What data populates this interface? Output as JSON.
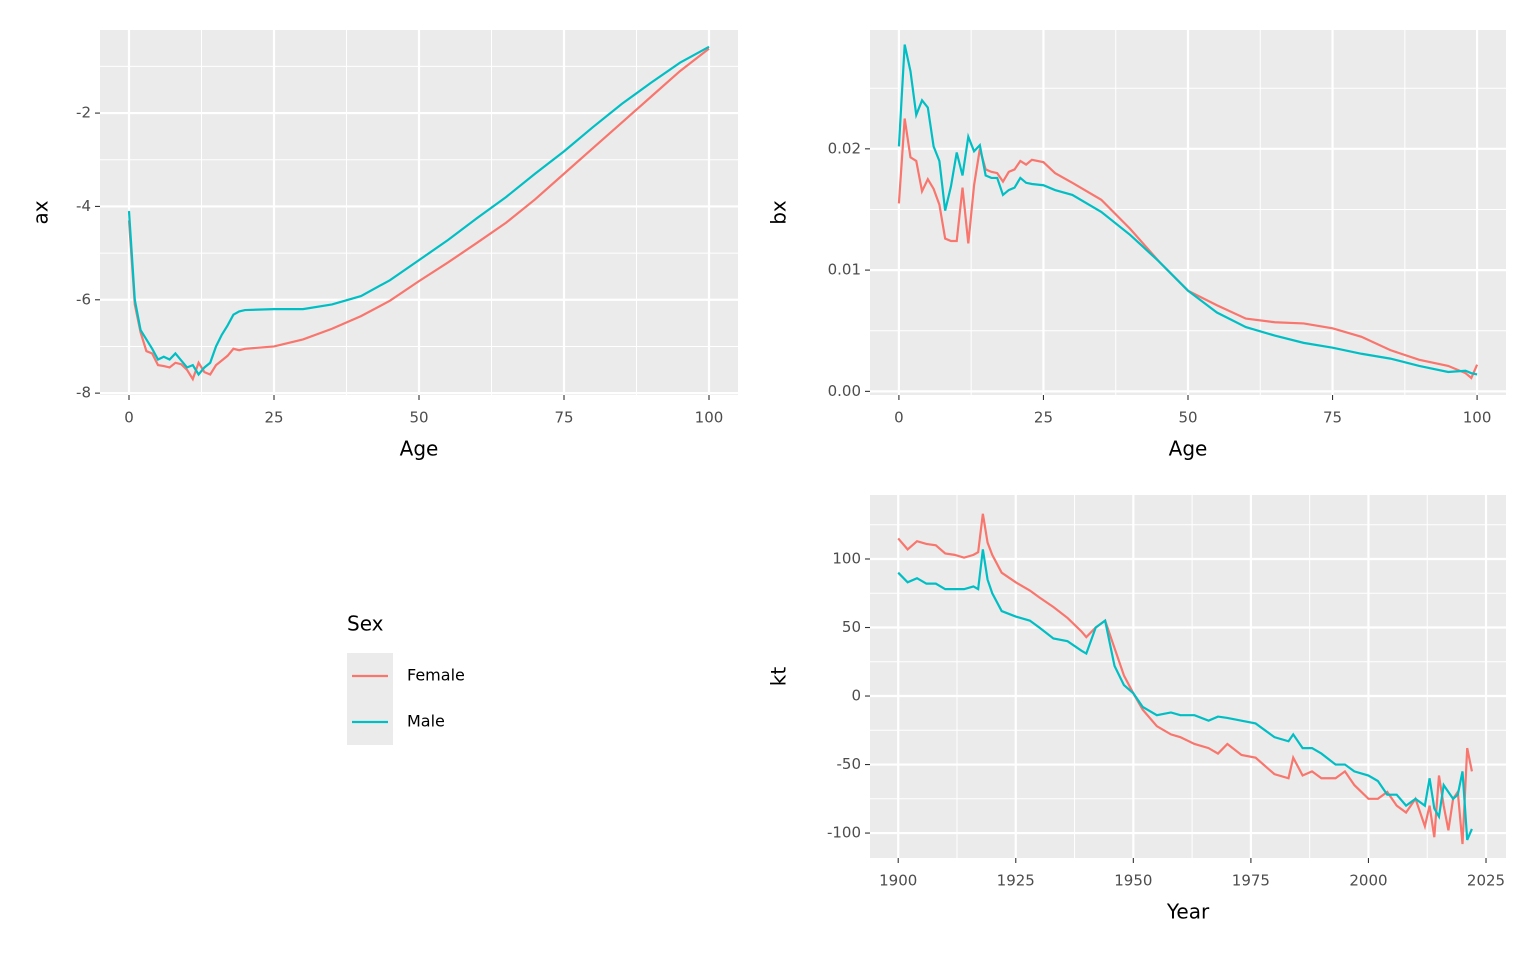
{
  "legend": {
    "title": "Sex"
  },
  "chart_data": [
    {
      "type": "line",
      "x_label": "Age",
      "y_label": "ax",
      "x": [
        0,
        1,
        2,
        3,
        4,
        5,
        6,
        7,
        8,
        9,
        10,
        11,
        12,
        13,
        14,
        15,
        16,
        17,
        18,
        19,
        20,
        25,
        30,
        35,
        40,
        45,
        50,
        55,
        60,
        65,
        70,
        75,
        80,
        85,
        90,
        95,
        100
      ],
      "series": [
        {
          "name": "Female",
          "color": "#F8766D",
          "values": [
            -4.3,
            -6.1,
            -6.7,
            -7.1,
            -7.15,
            -7.4,
            -7.42,
            -7.45,
            -7.35,
            -7.38,
            -7.5,
            -7.7,
            -7.35,
            -7.55,
            -7.6,
            -7.4,
            -7.3,
            -7.2,
            -7.05,
            -7.08,
            -7.05,
            -7.0,
            -6.85,
            -6.62,
            -6.35,
            -6.02,
            -5.6,
            -5.2,
            -4.78,
            -4.35,
            -3.85,
            -3.3,
            -2.75,
            -2.2,
            -1.65,
            -1.1,
            -0.62
          ]
        },
        {
          "name": "Male",
          "color": "#00BFC4",
          "values": [
            -4.1,
            -6.0,
            -6.65,
            -6.85,
            -7.05,
            -7.28,
            -7.22,
            -7.28,
            -7.15,
            -7.3,
            -7.45,
            -7.4,
            -7.6,
            -7.45,
            -7.35,
            -7.0,
            -6.75,
            -6.55,
            -6.32,
            -6.25,
            -6.22,
            -6.2,
            -6.2,
            -6.1,
            -5.92,
            -5.58,
            -5.15,
            -4.72,
            -4.25,
            -3.8,
            -3.3,
            -2.82,
            -2.3,
            -1.8,
            -1.35,
            -0.92,
            -0.58
          ]
        }
      ],
      "xlim": [
        -5,
        105
      ],
      "xticks": [
        0,
        25,
        50,
        75,
        100
      ],
      "ylim": [
        -8.04,
        -0.22
      ],
      "yticks": [
        -8,
        -6,
        -4,
        -2
      ],
      "grid": true
    },
    {
      "type": "line",
      "x_label": "Age",
      "y_label": "bx",
      "x": [
        0,
        1,
        2,
        3,
        4,
        5,
        6,
        7,
        8,
        9,
        10,
        11,
        12,
        13,
        14,
        15,
        16,
        17,
        18,
        19,
        20,
        21,
        22,
        23,
        25,
        27,
        30,
        35,
        40,
        45,
        50,
        55,
        60,
        65,
        70,
        75,
        80,
        85,
        90,
        95,
        98,
        99,
        100
      ],
      "series": [
        {
          "name": "Female",
          "color": "#F8766D",
          "values": [
            0.0155,
            0.0225,
            0.0193,
            0.019,
            0.0165,
            0.0175,
            0.0167,
            0.0154,
            0.0126,
            0.0124,
            0.0124,
            0.0168,
            0.0122,
            0.017,
            0.02,
            0.0183,
            0.0181,
            0.018,
            0.0173,
            0.0181,
            0.0183,
            0.019,
            0.0187,
            0.0191,
            0.0189,
            0.018,
            0.0172,
            0.0158,
            0.0134,
            0.0107,
            0.0083,
            0.0071,
            0.006,
            0.0057,
            0.0056,
            0.0052,
            0.0045,
            0.0034,
            0.0026,
            0.0021,
            0.0015,
            0.0011,
            0.0022
          ]
        },
        {
          "name": "Male",
          "color": "#00BFC4",
          "values": [
            0.0202,
            0.0286,
            0.0264,
            0.0228,
            0.024,
            0.0234,
            0.0202,
            0.019,
            0.0149,
            0.0169,
            0.0197,
            0.0178,
            0.021,
            0.0198,
            0.0203,
            0.0178,
            0.0176,
            0.0176,
            0.0162,
            0.0166,
            0.0168,
            0.0176,
            0.0172,
            0.0171,
            0.017,
            0.0166,
            0.0162,
            0.0148,
            0.0129,
            0.0107,
            0.0083,
            0.0065,
            0.0053,
            0.0046,
            0.004,
            0.0036,
            0.0031,
            0.0027,
            0.0021,
            0.0016,
            0.0017,
            0.0015,
            0.0014
          ]
        }
      ],
      "xlim": [
        -5,
        105
      ],
      "xticks": [
        0,
        25,
        50,
        75,
        100
      ],
      "ylim": [
        -0.0003,
        0.0298
      ],
      "yticks": [
        {
          "value": 0,
          "label": "0.00"
        },
        0.01,
        0.02
      ],
      "grid": true
    },
    {
      "type": "line",
      "x_label": "Year",
      "y_label": "kt",
      "x": [
        1900,
        1902,
        1904,
        1906,
        1908,
        1910,
        1912,
        1914,
        1916,
        1917,
        1918,
        1919,
        1920,
        1922,
        1925,
        1928,
        1930,
        1933,
        1936,
        1939,
        1940,
        1942,
        1944,
        1946,
        1948,
        1950,
        1952,
        1955,
        1958,
        1960,
        1963,
        1966,
        1968,
        1970,
        1973,
        1976,
        1980,
        1983,
        1984,
        1986,
        1988,
        1990,
        1993,
        1995,
        1997,
        2000,
        2002,
        2004,
        2006,
        2008,
        2010,
        2012,
        2013,
        2014,
        2015,
        2016,
        2017,
        2018,
        2019,
        2020,
        2021,
        2022
      ],
      "series": [
        {
          "name": "Female",
          "color": "#F8766D",
          "values": [
            115,
            107,
            113,
            111,
            110,
            104,
            103,
            101,
            103,
            105,
            133,
            112,
            103,
            90,
            83,
            77,
            72,
            65,
            57,
            47,
            43,
            50,
            55,
            35,
            15,
            2,
            -10,
            -22,
            -28,
            -30,
            -35,
            -38,
            -42,
            -35,
            -43,
            -45,
            -57,
            -60,
            -45,
            -58,
            -55,
            -60,
            -60,
            -55,
            -65,
            -75,
            -75,
            -70,
            -80,
            -85,
            -75,
            -95,
            -80,
            -103,
            -58,
            -80,
            -98,
            -75,
            -70,
            -108,
            -38,
            -55
          ]
        },
        {
          "name": "Male",
          "color": "#00BFC4",
          "values": [
            90,
            83,
            86,
            82,
            82,
            78,
            78,
            78,
            80,
            78,
            107,
            85,
            75,
            62,
            58,
            55,
            50,
            42,
            40,
            33,
            31,
            50,
            55,
            22,
            8,
            2,
            -8,
            -14,
            -12,
            -14,
            -14,
            -18,
            -15,
            -16,
            -18,
            -20,
            -30,
            -33,
            -28,
            -38,
            -38,
            -42,
            -50,
            -50,
            -55,
            -58,
            -62,
            -72,
            -72,
            -80,
            -75,
            -80,
            -60,
            -82,
            -88,
            -65,
            -70,
            -75,
            -72,
            -55,
            -105,
            -97
          ]
        }
      ],
      "xlim": [
        1894,
        2029.25
      ],
      "xticks": [
        1900,
        1925,
        1950,
        1975,
        2000,
        2025
      ],
      "ylim": [
        -118.2,
        146.7
      ],
      "yticks": [
        -100,
        -50,
        0,
        50,
        100
      ],
      "grid": true
    }
  ]
}
